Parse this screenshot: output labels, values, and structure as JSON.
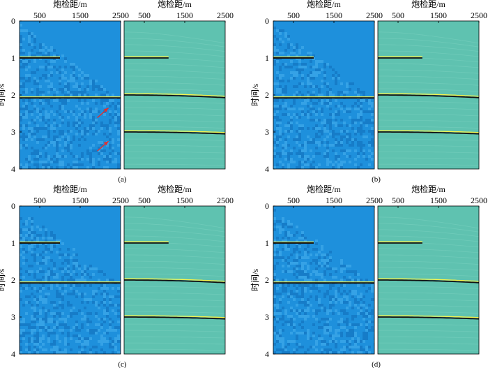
{
  "chart_data": [
    {
      "panel_label": "(a)",
      "type": "heatmap",
      "description_units": {
        "x": "炮检距/m",
        "y": "时间/s"
      },
      "xlabel": "炮检距/m",
      "ylabel": "时间/s",
      "xlim": [
        0,
        2500
      ],
      "ylim": [
        4,
        0
      ],
      "x_ticks": [
        500,
        1500,
        2500
      ],
      "y_ticks": [
        0,
        1,
        2,
        3,
        4
      ],
      "subplots": [
        {
          "name": "left",
          "reflections": [
            {
              "t0": 1.0,
              "flat": true,
              "x_start": 0,
              "x_end": 1000,
              "color": "#1a1a1a"
            },
            {
              "t0": 2.08,
              "flat": true,
              "x_start": 0,
              "x_end": 2500,
              "color": "#1a1a1a"
            }
          ],
          "noise_boundary": {
            "t_at_0": 0.05,
            "t_at_2500": 2.1
          },
          "background": "#1e90dc",
          "arrows": [
            {
              "x": 2200,
              "t": 2.35
            },
            {
              "x": 2200,
              "t": 3.25
            }
          ]
        },
        {
          "name": "right",
          "reflections": [
            {
              "t0": 1.0,
              "x_start": 0,
              "x_end": 1100,
              "v": 99999,
              "color": "#1a1a1a"
            },
            {
              "t0": 2.0,
              "x_start": 0,
              "x_end": 2500,
              "v": 4600,
              "color": "#1a1a1a"
            },
            {
              "t0": 3.0,
              "x_start": 0,
              "x_end": 2500,
              "v": 4500,
              "color": "#1a1a1a"
            }
          ],
          "background": "#5fc2b0"
        }
      ]
    },
    {
      "panel_label": "(b)",
      "type": "heatmap",
      "xlabel": "炮检距/m",
      "ylabel": "时间/s",
      "xlim": [
        0,
        2500
      ],
      "ylim": [
        4,
        0
      ],
      "x_ticks": [
        500,
        1500,
        2500
      ],
      "y_ticks": [
        0,
        1,
        2,
        3,
        4
      ],
      "subplots": [
        {
          "name": "left",
          "reflections": [
            {
              "t0": 1.0,
              "flat": true,
              "x_start": 0,
              "x_end": 1000
            },
            {
              "t0": 2.08,
              "flat": true,
              "x_start": 0,
              "x_end": 2500
            }
          ],
          "noise_boundary": {
            "t_at_0": 0.05,
            "t_at_2500": 2.1
          }
        },
        {
          "name": "right",
          "reflections": [
            {
              "t0": 1.0,
              "x_start": 0,
              "x_end": 1100,
              "v": 99999
            },
            {
              "t0": 2.0,
              "x_start": 0,
              "x_end": 2500,
              "v": 4600
            },
            {
              "t0": 3.0,
              "x_start": 0,
              "x_end": 2500,
              "v": 4500
            }
          ]
        }
      ]
    },
    {
      "panel_label": "(c)",
      "type": "heatmap",
      "xlabel": "炮检距/m",
      "ylabel": "时间/s",
      "xlim": [
        0,
        2500
      ],
      "ylim": [
        4,
        0
      ],
      "x_ticks": [
        500,
        1500,
        2500
      ],
      "y_ticks": [
        0,
        1,
        2,
        3,
        4
      ],
      "subplots": [
        {
          "name": "left",
          "reflections": [
            {
              "t0": 1.0,
              "flat": true,
              "x_start": 0,
              "x_end": 1000
            },
            {
              "t0": 2.08,
              "flat": true,
              "x_start": 0,
              "x_end": 2500
            }
          ],
          "noise_boundary": {
            "t_at_0": 0.05,
            "t_at_2500": 2.1
          }
        },
        {
          "name": "right",
          "reflections": [
            {
              "t0": 1.0,
              "x_start": 0,
              "x_end": 1100,
              "v": 99999
            },
            {
              "t0": 2.0,
              "x_start": 0,
              "x_end": 2500,
              "v": 4600
            },
            {
              "t0": 3.0,
              "x_start": 0,
              "x_end": 2500,
              "v": 4500
            }
          ]
        }
      ]
    },
    {
      "panel_label": "(d)",
      "type": "heatmap",
      "xlabel": "炮检距/m",
      "ylabel": "时间/s",
      "xlim": [
        0,
        2500
      ],
      "ylim": [
        4,
        0
      ],
      "x_ticks": [
        500,
        1500,
        2500
      ],
      "y_ticks": [
        0,
        1,
        2,
        3,
        4
      ],
      "subplots": [
        {
          "name": "left",
          "reflections": [
            {
              "t0": 1.0,
              "flat": true,
              "x_start": 0,
              "x_end": 1000
            },
            {
              "t0": 2.08,
              "flat": true,
              "x_start": 0,
              "x_end": 2500
            }
          ],
          "noise_boundary": {
            "t_at_0": 0.05,
            "t_at_2500": 2.1
          }
        },
        {
          "name": "right",
          "reflections": [
            {
              "t0": 1.0,
              "x_start": 0,
              "x_end": 1100,
              "v": 99999
            },
            {
              "t0": 2.0,
              "x_start": 0,
              "x_end": 2500,
              "v": 4600
            },
            {
              "t0": 3.0,
              "x_start": 0,
              "x_end": 2500,
              "v": 4500
            }
          ]
        }
      ]
    }
  ],
  "colors": {
    "left_bg": "#1e90dc",
    "left_noise_a": "#3aa6e8",
    "left_noise_b": "#1579c4",
    "right_bg": "#5fc2b0",
    "right_ripple": "#7ad1c0",
    "event_dark": "#111111",
    "event_bright": "#f6f24a",
    "arrow": "#e03030"
  }
}
